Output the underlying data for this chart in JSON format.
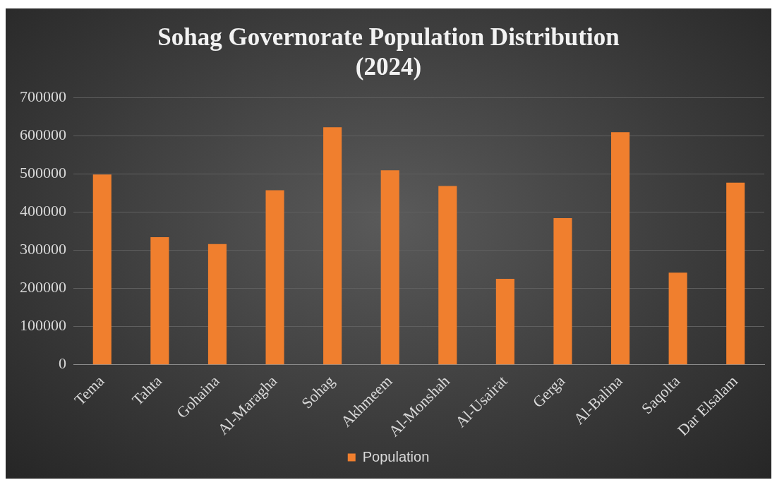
{
  "chart_data": {
    "type": "bar",
    "title": "Sohag Governorate Population Distribution (2024)",
    "categories": [
      "Tema",
      "Tahta",
      "Gohaina",
      "Al-Maragha",
      "Sohag",
      "Akhmeem",
      "Al-Monshah",
      "Al-Usairat",
      "Gerga",
      "Al-Balina",
      "Saqolta",
      "Dar Elsalam"
    ],
    "series": [
      {
        "name": "Population",
        "color": "#f07f2e",
        "values": [
          498000,
          334000,
          316000,
          457000,
          622000,
          509000,
          468000,
          225000,
          384000,
          609000,
          241000,
          477000
        ]
      }
    ],
    "ylim": [
      0,
      700000
    ],
    "yticks": [
      0,
      100000,
      200000,
      300000,
      400000,
      500000,
      600000,
      700000
    ],
    "grid": "y",
    "legend": "bottom"
  }
}
